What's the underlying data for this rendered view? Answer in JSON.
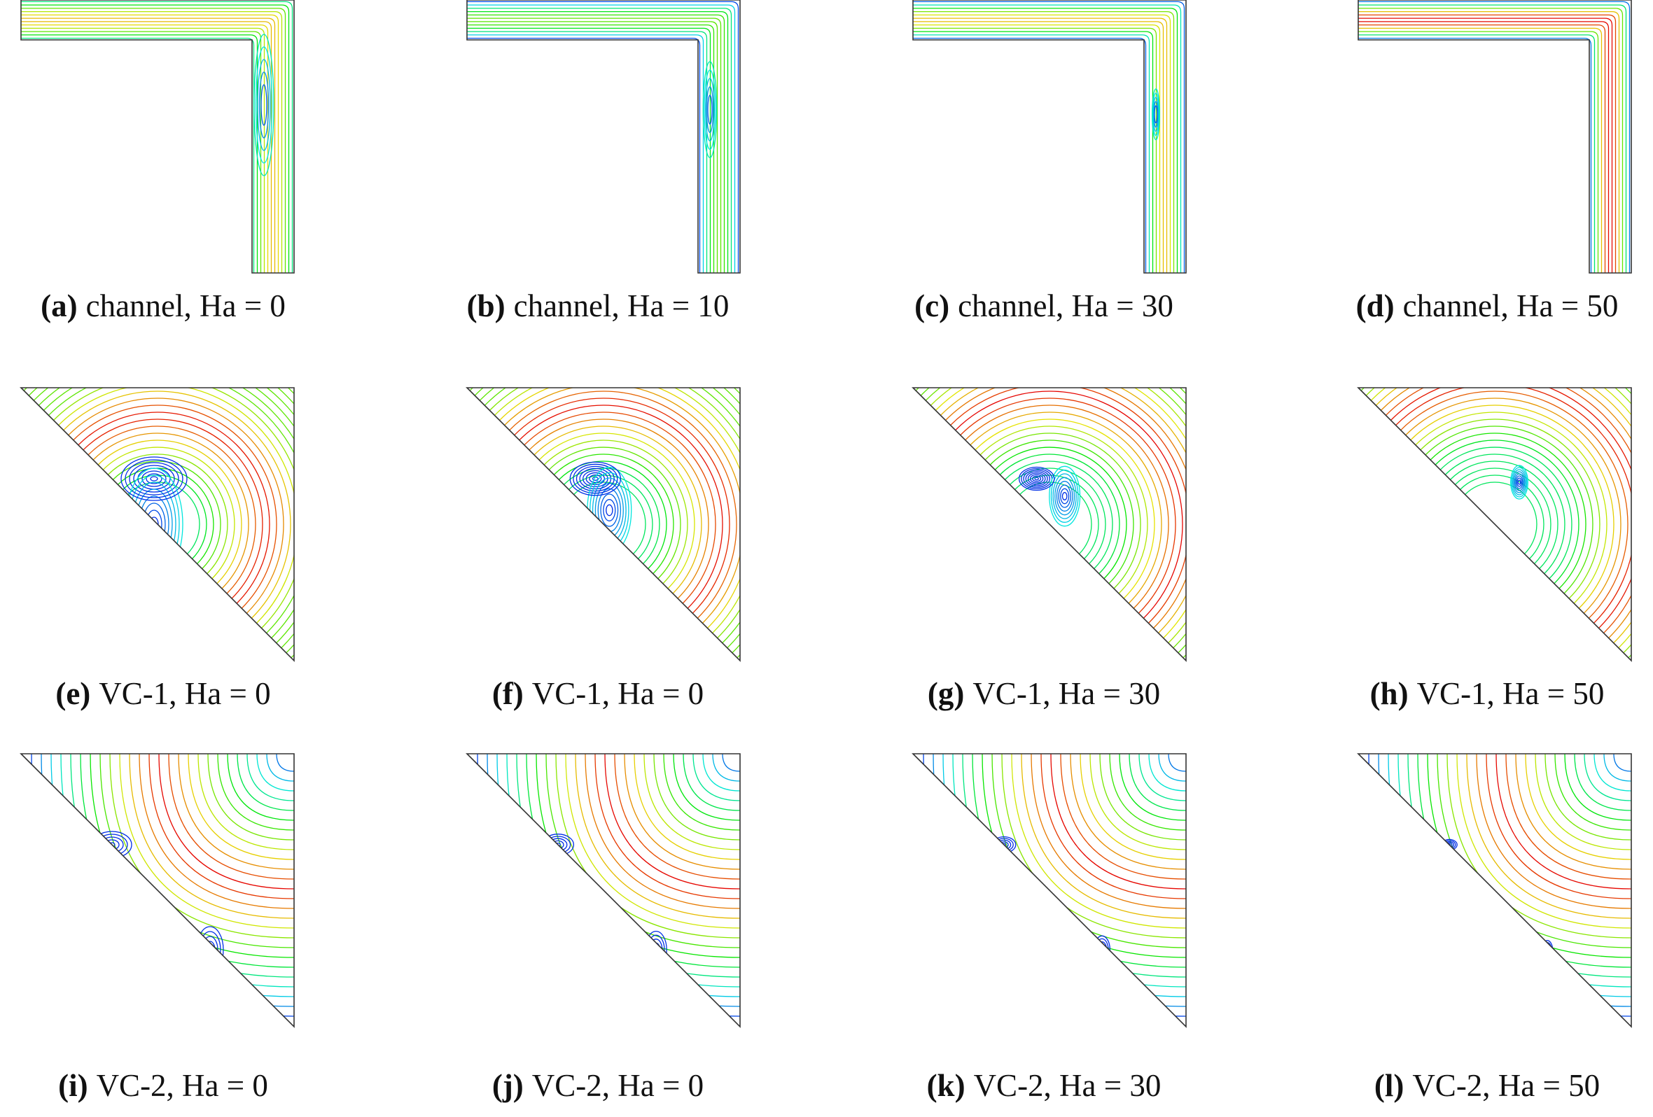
{
  "panels": [
    {
      "label": "(a)",
      "caption": "channel, Ha = 0"
    },
    {
      "label": "(b)",
      "caption": "channel, Ha = 10"
    },
    {
      "label": "(c)",
      "caption": "channel, Ha = 30"
    },
    {
      "label": "(d)",
      "caption": "channel, Ha = 50"
    },
    {
      "label": "(e)",
      "caption": "VC-1, Ha = 0"
    },
    {
      "label": "(f)",
      "caption": "VC-1, Ha = 0"
    },
    {
      "label": "(g)",
      "caption": "VC-1, Ha = 30"
    },
    {
      "label": "(h)",
      "caption": "VC-1, Ha = 50"
    },
    {
      "label": "(i)",
      "caption": "VC-2, Ha = 0"
    },
    {
      "label": "(j)",
      "caption": "VC-2, Ha = 0"
    },
    {
      "label": "(k)",
      "caption": "VC-2, Ha = 30"
    },
    {
      "label": "(l)",
      "caption": "VC-2, Ha = 50"
    }
  ]
}
